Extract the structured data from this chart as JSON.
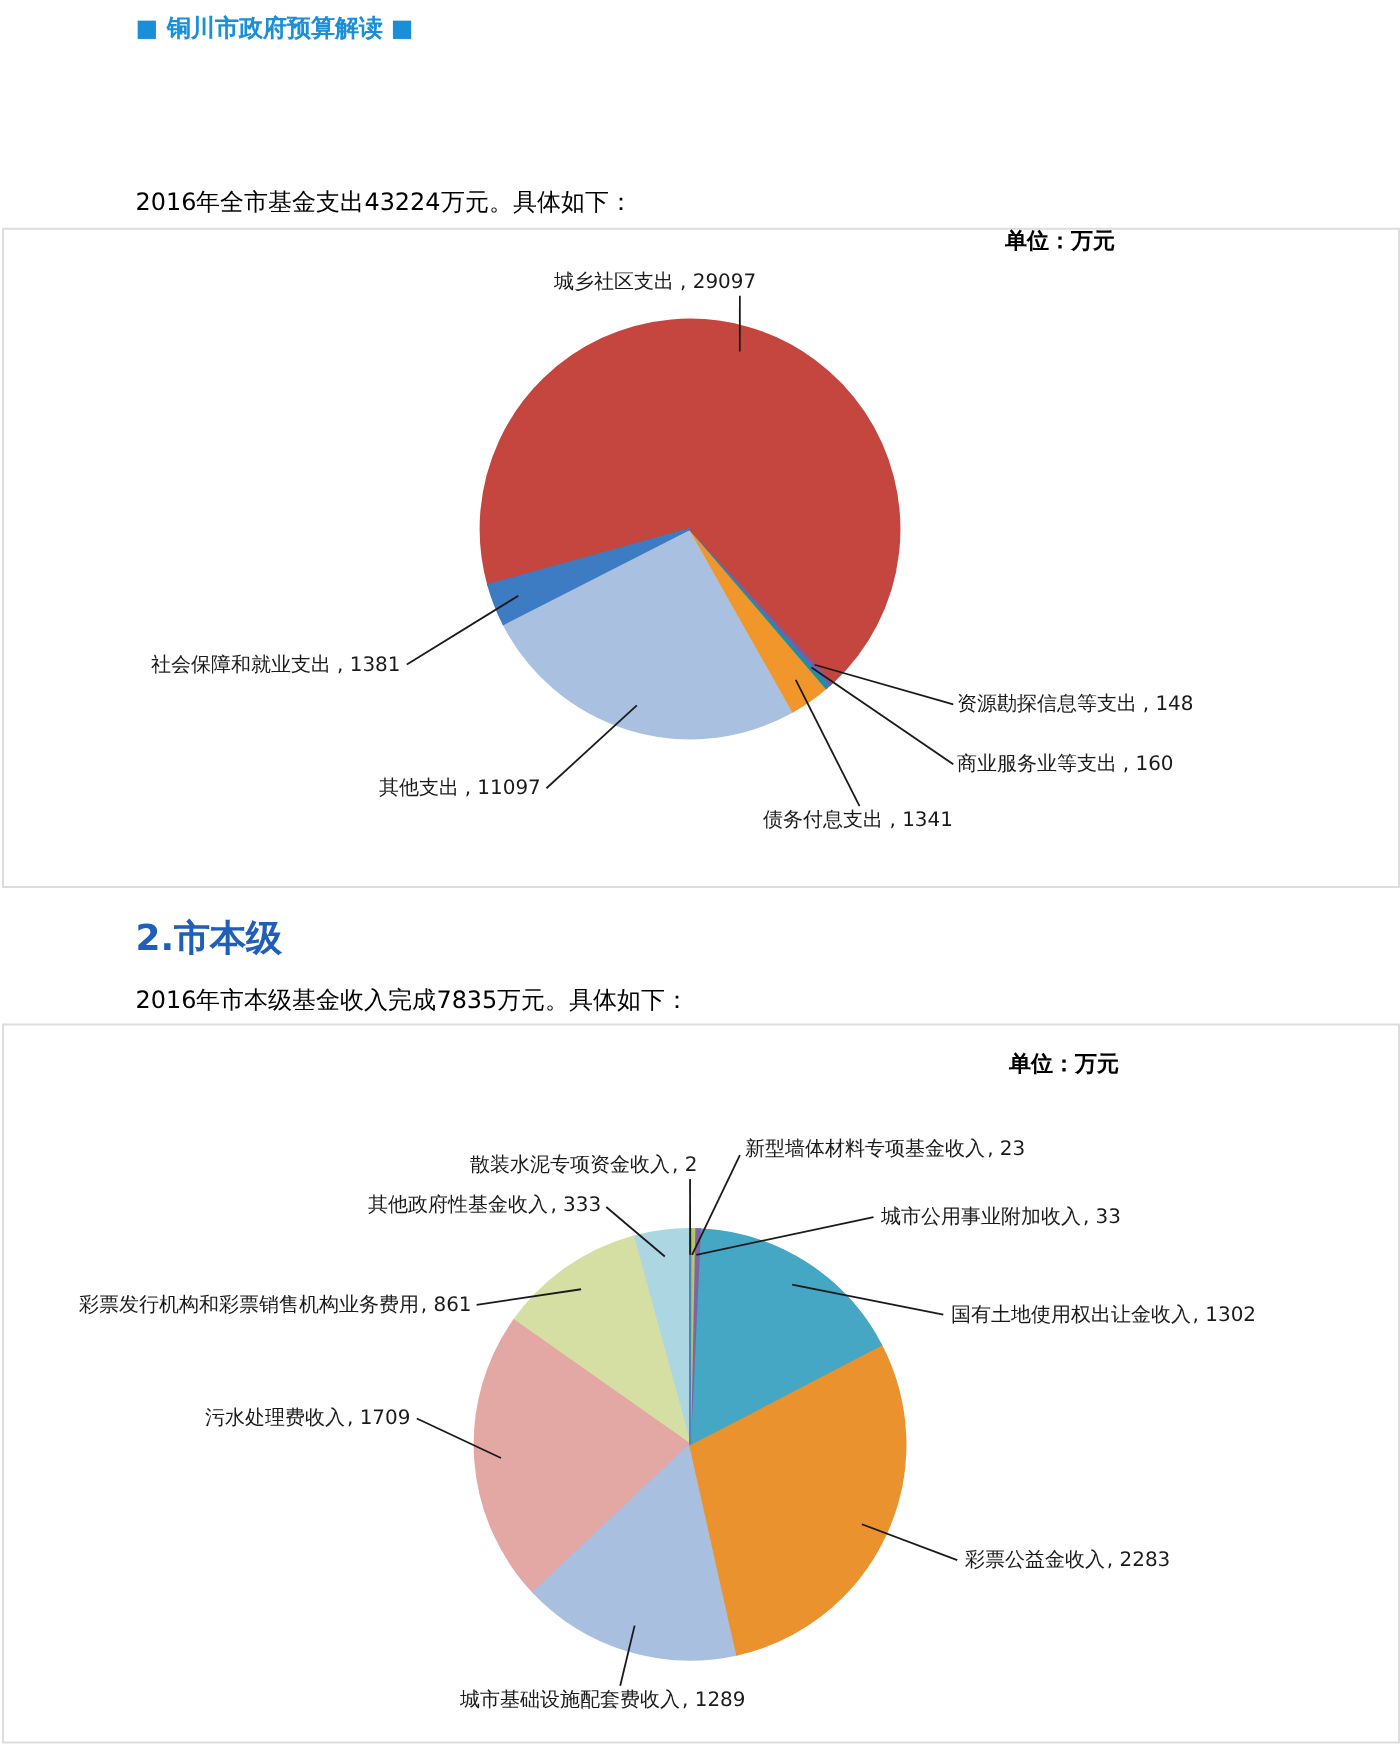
{
  "chart_data": [
    {
      "type": "pie",
      "title": "■ 铜川市政府预算解读 ■",
      "subtitle": "2016年全市基金支出43224万元。具体如下：",
      "annotations": [
        "单位：万元"
      ],
      "categories": [
        "社会保障和就业支出",
        "城乡社区支出",
        "资源勘探信息等支出",
        "商业服务业等支出",
        "债务付息支出",
        "其他支出"
      ],
      "values": [
        1381,
        29097,
        148,
        160,
        1341,
        11097
      ],
      "value_labels": [
        ", 1381",
        ", 29097",
        ", 148",
        ", 160",
        ", 1341",
        ", 11097"
      ],
      "colors": [
        "#3d7cc2",
        "#c4463f",
        "#7b5ba8",
        "#1f8fa6",
        "#f0962a",
        "#aac0e0"
      ]
    },
    {
      "type": "pie",
      "title": "2.市本级",
      "subtitle": "2016年市本级基金收入完成7835万元。具体如下：",
      "annotations": [
        "单位：万元"
      ],
      "categories": [
        "散装水泥专项资金收入",
        "新型墙体材料专项基金收入",
        "城市公用事业附加收入",
        "国有土地使用权出让金收入",
        "彩票公益金收入",
        "城市基础设施配套费收入",
        "污水处理费收入",
        "彩票发行机构和彩票销售机构业务费用",
        "其他政府性基金收入"
      ],
      "values": [
        2,
        23,
        33,
        1302,
        2283,
        1289,
        1709,
        861,
        333
      ],
      "value_labels": [
        ", 2",
        ", 23",
        ", 33",
        ", 1302",
        ", 2283",
        ", 1289",
        ", 1709",
        ", 861",
        ", 333"
      ],
      "colors": [
        "#4f81bd",
        "#b3c76b",
        "#8064a2",
        "#45a7c3",
        "#ea922d",
        "#a9bfe0",
        "#e3a8a4",
        "#d6dfa3",
        "#acd6e1"
      ]
    }
  ]
}
